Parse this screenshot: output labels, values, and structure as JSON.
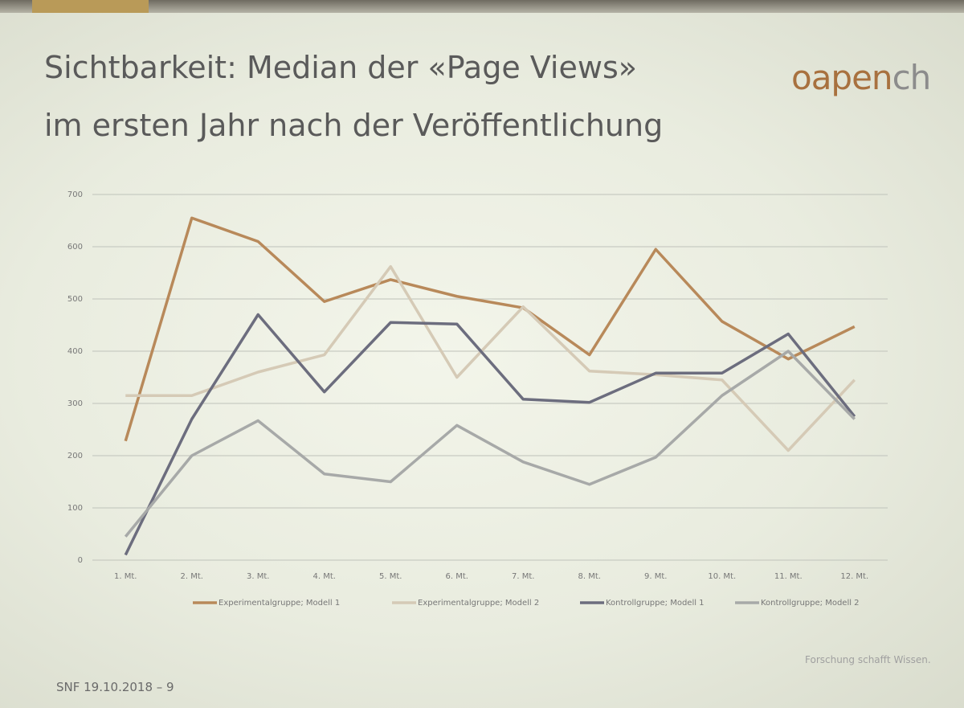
{
  "slide": {
    "title_lines": [
      "Sichtbarkeit: Median der «Page Views»",
      "im ersten Jahr nach der Veröffentlichung"
    ],
    "logo": [
      "oapen",
      "ch"
    ],
    "footer": "SNF 19.10.2018 – 9",
    "tagline": "Forschung schafft Wissen."
  },
  "chart_data": {
    "type": "line",
    "categories": [
      "1. Mt.",
      "2. Mt.",
      "3. Mt.",
      "4. Mt.",
      "5. Mt.",
      "6. Mt.",
      "7. Mt.",
      "8. Mt.",
      "9. Mt.",
      "10. Mt.",
      "11. Mt.",
      "12. Mt."
    ],
    "series": [
      {
        "name": "Experimentalgruppe; Modell 1",
        "color": "#b8895a",
        "values": [
          228,
          655,
          610,
          495,
          537,
          505,
          483,
          393,
          595,
          457,
          385,
          447
        ]
      },
      {
        "name": "Experimentalgruppe; Modell 2",
        "color": "#d5cab6",
        "values": [
          315,
          315,
          360,
          393,
          562,
          350,
          485,
          362,
          355,
          345,
          210,
          345
        ]
      },
      {
        "name": "Kontrollgruppe; Modell 1",
        "color": "#6c6d7e",
        "values": [
          10,
          270,
          470,
          322,
          455,
          452,
          308,
          302,
          358,
          358,
          433,
          275
        ]
      },
      {
        "name": "Kontrollgruppe; Modell 2",
        "color": "#a7a9a8",
        "values": [
          45,
          200,
          267,
          165,
          150,
          258,
          188,
          145,
          197,
          315,
          400,
          270
        ]
      }
    ],
    "ylim": [
      0,
      700
    ],
    "yticks": [
      0,
      100,
      200,
      300,
      400,
      500,
      600,
      700
    ],
    "grid": true,
    "legend": "bottom"
  }
}
